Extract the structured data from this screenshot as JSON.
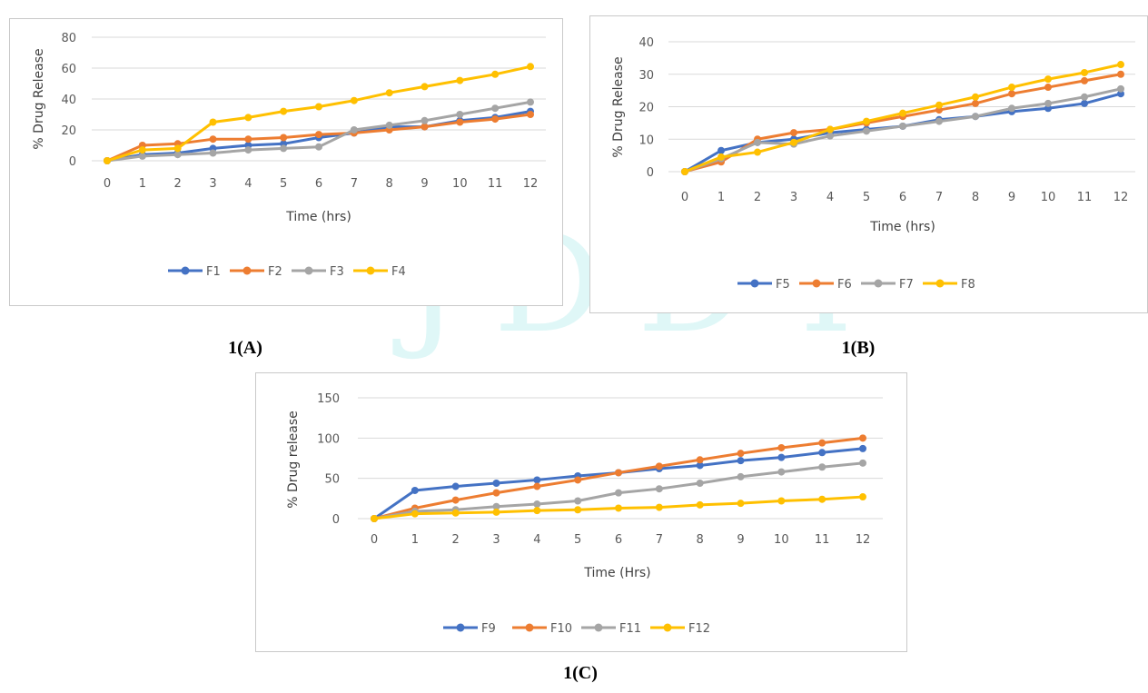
{
  "watermark": {
    "text": "JDDT"
  },
  "captions": {
    "a": "1(A)",
    "b": "1(B)",
    "c": "1(C)"
  },
  "chart_data": [
    {
      "type": "line",
      "xlabel": "Time (hrs)",
      "ylabel": "% Drug Release",
      "x": [
        0,
        1,
        2,
        3,
        4,
        5,
        6,
        7,
        8,
        9,
        10,
        11,
        12
      ],
      "ylim": [
        0,
        80
      ],
      "yticks": [
        0,
        20,
        40,
        60,
        80
      ],
      "grid": true,
      "legend": "bottom",
      "series": [
        {
          "name": "F1",
          "color": "#4472c4",
          "values": [
            0,
            4,
            5,
            8,
            10,
            11,
            15,
            18,
            22,
            22,
            26,
            28,
            32
          ]
        },
        {
          "name": "F2",
          "color": "#ed7d31",
          "values": [
            0,
            10,
            11,
            14,
            14,
            15,
            17,
            18,
            20,
            22,
            25,
            27,
            30
          ]
        },
        {
          "name": "F3",
          "color": "#a5a5a5",
          "values": [
            0,
            3,
            4,
            5,
            7,
            8,
            9,
            20,
            23,
            26,
            30,
            34,
            38
          ]
        },
        {
          "name": "F4",
          "color": "#ffc000",
          "values": [
            0,
            7,
            8,
            25,
            28,
            32,
            35,
            39,
            44,
            48,
            52,
            56,
            61
          ]
        }
      ]
    },
    {
      "type": "line",
      "xlabel": "Time (hrs)",
      "ylabel": "% Drug Release",
      "x": [
        0,
        1,
        2,
        3,
        4,
        5,
        6,
        7,
        8,
        9,
        10,
        11,
        12
      ],
      "ylim": [
        0,
        40
      ],
      "yticks": [
        0,
        10,
        20,
        30,
        40
      ],
      "grid": true,
      "legend": "bottom",
      "series": [
        {
          "name": "F5",
          "color": "#4472c4",
          "values": [
            0,
            6.5,
            9,
            10,
            12,
            13,
            14,
            16,
            17,
            18.5,
            19.5,
            21,
            24
          ]
        },
        {
          "name": "F6",
          "color": "#ed7d31",
          "values": [
            0,
            3,
            10,
            12,
            13,
            15,
            17,
            19,
            21,
            24,
            26,
            28,
            30
          ]
        },
        {
          "name": "F7",
          "color": "#a5a5a5",
          "values": [
            0,
            4,
            9,
            8.5,
            11,
            12.5,
            14,
            15.5,
            17,
            19.5,
            21,
            23,
            25.5
          ]
        },
        {
          "name": "F8",
          "color": "#ffc000",
          "values": [
            0,
            4.5,
            6,
            9,
            13,
            15.5,
            18,
            20.5,
            23,
            26,
            28.5,
            30.5,
            33
          ]
        }
      ]
    },
    {
      "type": "line",
      "xlabel": "Time (Hrs)",
      "ylabel": "% Drug release",
      "x": [
        0,
        1,
        2,
        3,
        4,
        5,
        6,
        7,
        8,
        9,
        10,
        11,
        12
      ],
      "ylim": [
        0,
        150
      ],
      "yticks": [
        0,
        50,
        100,
        150
      ],
      "grid": true,
      "legend": "bottom",
      "series": [
        {
          "name": "F9",
          "color": "#4472c4",
          "values": [
            0,
            35,
            40,
            44,
            48,
            53,
            57,
            62,
            66,
            72,
            76,
            82,
            87
          ]
        },
        {
          "name": "F10",
          "color": "#ed7d31",
          "values": [
            0,
            13,
            23,
            32,
            40,
            48,
            57,
            65,
            73,
            81,
            88,
            94,
            100
          ]
        },
        {
          "name": "F11",
          "color": "#a5a5a5",
          "values": [
            0,
            9,
            11,
            15,
            18,
            22,
            32,
            37,
            44,
            52,
            58,
            64,
            69
          ]
        },
        {
          "name": "F12",
          "color": "#ffc000",
          "values": [
            0,
            6,
            7,
            8,
            10,
            11,
            13,
            14,
            17,
            19,
            22,
            24,
            27
          ]
        }
      ]
    }
  ]
}
